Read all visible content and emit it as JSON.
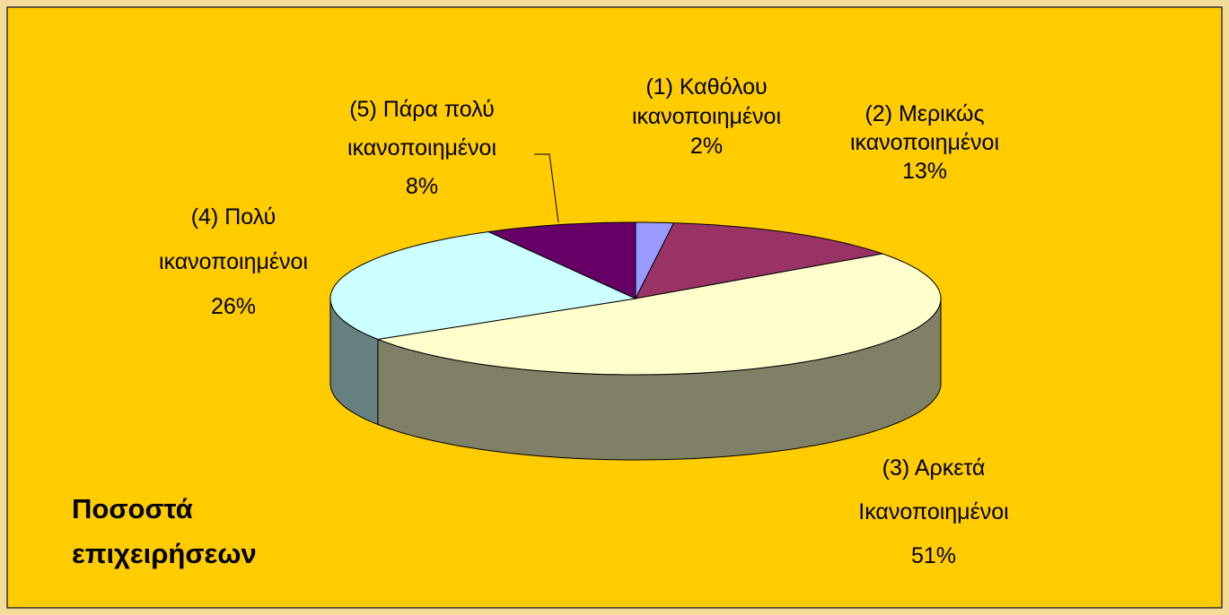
{
  "chart_data": {
    "type": "pie",
    "title": "Ποσοστά επιχειρήσεων",
    "categories": [
      "(1) Καθόλου ικανοποιημένοι",
      "(2) Μερικώς ικανοποιημένοι",
      "(3) Αρκετά Ικανοποιημένοι",
      "(4) Πολύ ικανοποιημένοι",
      "(5) Πάρα πολύ ικανοποιημένοι"
    ],
    "values": [
      2,
      13,
      51,
      26,
      8
    ],
    "value_labels": [
      "2%",
      "13%",
      "51%",
      "26%",
      "8%"
    ],
    "colors": [
      "#9999ff",
      "#993366",
      "#ffffcc",
      "#ccffff",
      "#660066"
    ]
  }
}
